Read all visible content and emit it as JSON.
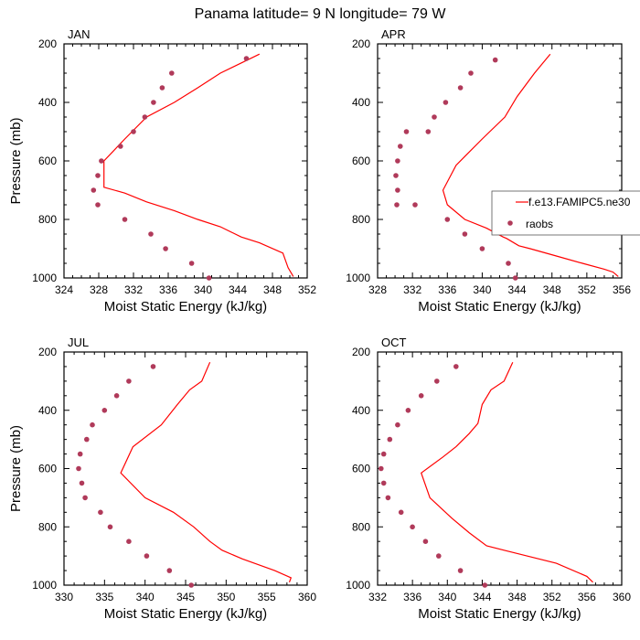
{
  "figure_title": "Panama  latitude= 9 N longitude= 79 W",
  "colors": {
    "model": "#ff0000",
    "obs": "#b03a5a",
    "frame": "#000000"
  },
  "chart_data": [
    {
      "type": "scatter",
      "panel_label": "JAN",
      "xlabel": "Moist Static Energy (kJ/kg)",
      "ylabel": "Pressure (mb)",
      "xlim": [
        324,
        352
      ],
      "xticks": [
        324,
        328,
        332,
        336,
        340,
        344,
        348,
        352
      ],
      "ylim": [
        1000,
        200
      ],
      "yticks": [
        200,
        400,
        600,
        800,
        1000
      ],
      "grid": false,
      "series": [
        {
          "name": "f.e13.FAMIPC5.ne30",
          "kind": "line",
          "x": [
            346.5,
            342.0,
            339.4,
            336.7,
            333.5,
            331.0,
            328.6,
            328.6,
            331.0,
            333.5,
            336.7,
            339.4,
            342.0,
            344.4,
            346.5,
            349.2,
            349.8,
            350.4
          ],
          "y": [
            235,
            300,
            350,
            400,
            450,
            525,
            600,
            690,
            710,
            740,
            770,
            800,
            825,
            860,
            880,
            915,
            965,
            995
          ]
        },
        {
          "name": "raobs",
          "kind": "markers",
          "x": [
            345.0,
            336.4,
            335.3,
            334.3,
            333.3,
            332.0,
            330.5,
            328.3,
            327.9,
            327.4,
            327.9,
            331.0,
            334.0,
            335.7,
            338.7,
            340.7
          ],
          "y": [
            250,
            300,
            350,
            400,
            450,
            500,
            550,
            600,
            650,
            700,
            750,
            800,
            850,
            900,
            950,
            1000
          ]
        }
      ]
    },
    {
      "type": "scatter",
      "panel_label": "APR",
      "xlabel": "Moist Static Energy (kJ/kg)",
      "ylabel": "",
      "xlim": [
        328,
        356
      ],
      "xticks": [
        328,
        332,
        336,
        340,
        344,
        348,
        352,
        356
      ],
      "ylim": [
        1000,
        200
      ],
      "yticks": [
        200,
        400,
        600,
        800,
        1000
      ],
      "grid": false,
      "legend_location": "right",
      "series": [
        {
          "name": "f.e13.FAMIPC5.ne30",
          "kind": "line",
          "x": [
            347.8,
            346.0,
            344.0,
            342.6,
            340.0,
            337.0,
            335.5,
            336.0,
            338.0,
            340.5,
            342.4,
            342.8,
            344.2,
            345.5,
            348.5,
            351.5,
            354.0,
            355.0,
            355.6
          ],
          "y": [
            235,
            300,
            380,
            450,
            525,
            615,
            700,
            750,
            800,
            830,
            860,
            865,
            890,
            900,
            925,
            950,
            970,
            980,
            995
          ]
        },
        {
          "name": "raobs",
          "kind": "markers",
          "x": [
            341.5,
            338.7,
            337.5,
            335.8,
            334.5,
            333.8,
            331.3,
            330.6,
            330.3,
            330.1,
            330.3,
            330.2,
            332.3,
            336.0,
            338.0,
            340.0,
            343.0,
            343.8
          ],
          "y": [
            255,
            300,
            350,
            400,
            450,
            500,
            500,
            550,
            600,
            650,
            700,
            750,
            750,
            800,
            850,
            900,
            950,
            1000
          ]
        }
      ]
    },
    {
      "type": "scatter",
      "panel_label": "JUL",
      "xlabel": "Moist Static Energy (kJ/kg)",
      "ylabel": "Pressure (mb)",
      "xlim": [
        330,
        360
      ],
      "xticks": [
        330,
        335,
        340,
        345,
        350,
        355,
        360
      ],
      "ylim": [
        1000,
        200
      ],
      "yticks": [
        200,
        400,
        600,
        800,
        1000
      ],
      "grid": false,
      "series": [
        {
          "name": "f.e13.FAMIPC5.ne30",
          "kind": "line",
          "x": [
            348.0,
            347.0,
            345.5,
            344.0,
            342.0,
            338.5,
            337.0,
            340.0,
            343.5,
            346.0,
            348.0,
            349.5,
            352.0,
            356.0,
            358.0,
            357.8
          ],
          "y": [
            235,
            300,
            330,
            380,
            450,
            525,
            615,
            700,
            750,
            800,
            850,
            880,
            910,
            950,
            975,
            990
          ]
        },
        {
          "name": "raobs",
          "kind": "markers",
          "x": [
            341.0,
            338.0,
            336.5,
            335.0,
            333.5,
            332.8,
            332.0,
            331.8,
            332.2,
            332.6,
            334.5,
            335.7,
            338.0,
            340.2,
            343.0,
            345.7
          ],
          "y": [
            250,
            300,
            350,
            400,
            450,
            500,
            550,
            600,
            650,
            700,
            750,
            800,
            850,
            900,
            950,
            1000
          ]
        }
      ]
    },
    {
      "type": "scatter",
      "panel_label": "OCT",
      "xlabel": "Moist Static Energy (kJ/kg)",
      "ylabel": "",
      "xlim": [
        332,
        360
      ],
      "xticks": [
        332,
        336,
        340,
        344,
        348,
        352,
        356,
        360
      ],
      "ylim": [
        1000,
        200
      ],
      "yticks": [
        200,
        400,
        600,
        800,
        1000
      ],
      "grid": false,
      "series": [
        {
          "name": "f.e13.FAMIPC5.ne30",
          "kind": "line",
          "x": [
            347.5,
            346.5,
            345.0,
            344.0,
            343.5,
            342.5,
            341.0,
            339.5,
            337.0,
            338.0,
            340.5,
            342.5,
            344.5,
            346.5,
            352.5,
            356.0,
            356.7
          ],
          "y": [
            235,
            300,
            330,
            380,
            445,
            480,
            525,
            560,
            615,
            700,
            770,
            820,
            865,
            880,
            925,
            970,
            990
          ]
        },
        {
          "name": "raobs",
          "kind": "markers",
          "x": [
            341.0,
            338.8,
            337.0,
            335.5,
            334.3,
            333.4,
            332.7,
            332.4,
            332.7,
            333.2,
            334.7,
            336.0,
            337.5,
            339.0,
            341.5,
            344.3
          ],
          "y": [
            250,
            300,
            350,
            400,
            450,
            500,
            550,
            600,
            650,
            700,
            750,
            800,
            850,
            900,
            950,
            1000
          ]
        }
      ]
    }
  ],
  "legend": {
    "entries": [
      {
        "label": "f.e13.FAMIPC5.ne30",
        "kind": "line"
      },
      {
        "label": "raobs",
        "kind": "markers"
      }
    ]
  }
}
